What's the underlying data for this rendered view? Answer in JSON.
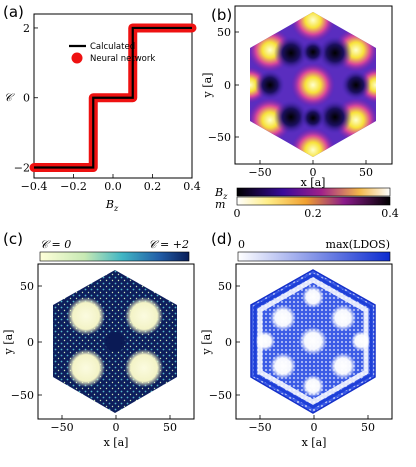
{
  "figure": {
    "panel_labels": [
      "(a)",
      "(b)",
      "(c)",
      "(d)"
    ]
  },
  "chart_data": [
    {
      "panel": "(a)",
      "type": "line",
      "xlabel": "B_z",
      "ylabel": "𝒞",
      "xlim": [
        -0.4,
        0.4
      ],
      "ylim": [
        -2.3,
        2.4
      ],
      "x_ticks": [
        "−0.4",
        "−0.2",
        "0.0",
        "0.2",
        "0.4"
      ],
      "y_ticks": [
        "−2",
        "0",
        "2"
      ],
      "legend": [
        "Calculated",
        "Neural network"
      ],
      "legend_placement": "top-right",
      "colors": {
        "calculated": "#000000",
        "neural": "#ee1111"
      },
      "series": [
        {
          "name": "Calculated",
          "x": [
            -0.4,
            -0.1,
            -0.1,
            0.1,
            0.1,
            0.4
          ],
          "y": [
            -2,
            -2,
            0,
            0,
            2,
            2
          ]
        },
        {
          "name": "Neural network",
          "x": [
            -0.4,
            -0.1,
            -0.1,
            0.1,
            0.1,
            0.4
          ],
          "y": [
            -2,
            -2,
            0,
            0,
            2,
            2
          ]
        }
      ]
    },
    {
      "panel": "(b)",
      "type": "heatmap",
      "xlabel": "x [a]",
      "ylabel": "y [a]",
      "x_ticks": [
        "−50",
        "0",
        "50"
      ],
      "y_ticks": [
        "−50",
        "0",
        "50"
      ],
      "colorbar": {
        "labels": [
          "B_z",
          "m"
        ],
        "ticks": [
          "0",
          "0.2",
          "0.4"
        ],
        "range": [
          0,
          0.4
        ]
      }
    },
    {
      "panel": "(c)",
      "type": "heatmap",
      "xlabel": "x [a]",
      "ylabel": "y [a]",
      "x_ticks": [
        "−50",
        "0",
        "50"
      ],
      "y_ticks": [
        "−50",
        "0",
        "50"
      ],
      "colorbar": {
        "left_label": "𝒞 = 0",
        "right_label": "𝒞 = +2"
      }
    },
    {
      "panel": "(d)",
      "type": "heatmap",
      "xlabel": "x [a]",
      "ylabel": "y [a]",
      "x_ticks": [
        "−50",
        "0",
        "50"
      ],
      "y_ticks": [
        "−50",
        "0",
        "50"
      ],
      "colorbar": {
        "left_label": "0",
        "right_label": "max(LDOS)"
      }
    }
  ]
}
